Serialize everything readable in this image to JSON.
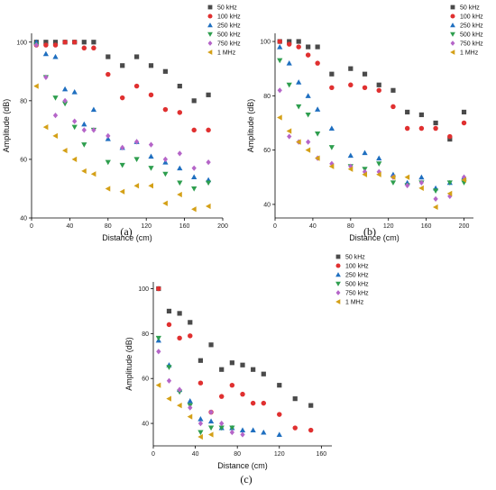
{
  "chart_data": [
    {
      "type": "scatter",
      "panel_label": "(a)",
      "xlabel": "Distance (cm)",
      "ylabel": "Amplitude (dB)",
      "xlim": [
        0,
        200
      ],
      "ylim": [
        40,
        103
      ],
      "xticks": [
        0,
        40,
        80,
        120,
        160,
        200
      ],
      "yticks": [
        40,
        60,
        80,
        100
      ],
      "legend_position": "top-right",
      "series": [
        {
          "name": "50 kHz",
          "marker": "square",
          "color": "#4a4a4a",
          "x": [
            5,
            15,
            25,
            35,
            45,
            55,
            65,
            80,
            95,
            110,
            125,
            140,
            155,
            170,
            185
          ],
          "y": [
            100,
            100,
            100,
            100,
            100,
            100,
            100,
            95,
            92,
            95,
            92,
            90,
            85,
            80,
            82
          ]
        },
        {
          "name": "100 kHz",
          "marker": "circle",
          "color": "#e03030",
          "x": [
            5,
            15,
            25,
            35,
            45,
            55,
            65,
            80,
            95,
            110,
            125,
            140,
            155,
            170,
            185
          ],
          "y": [
            99,
            99,
            99,
            100,
            100,
            98,
            98,
            89,
            81,
            85,
            82,
            77,
            76,
            70,
            70
          ]
        },
        {
          "name": "250 kHz",
          "marker": "triangle-up",
          "color": "#1f6fc0",
          "x": [
            5,
            15,
            25,
            35,
            45,
            55,
            65,
            80,
            95,
            110,
            125,
            140,
            155,
            170,
            185
          ],
          "y": [
            100,
            96,
            95,
            84,
            83,
            72,
            77,
            67,
            64,
            66,
            61,
            59,
            57,
            54,
            53
          ]
        },
        {
          "name": "500 kHz",
          "marker": "triangle-down",
          "color": "#2e9e4e",
          "x": [
            5,
            15,
            25,
            35,
            45,
            55,
            65,
            80,
            95,
            110,
            125,
            140,
            155,
            170,
            185
          ],
          "y": [
            99,
            88,
            81,
            79,
            71,
            65,
            70,
            59,
            58,
            60,
            57,
            55,
            52,
            50,
            52
          ]
        },
        {
          "name": "750 kHz",
          "marker": "diamond",
          "color": "#b565c8",
          "x": [
            5,
            15,
            25,
            35,
            45,
            55,
            65,
            80,
            95,
            110,
            125,
            140,
            155,
            170,
            185
          ],
          "y": [
            99,
            88,
            75,
            80,
            73,
            70,
            70,
            68,
            64,
            66,
            65,
            60,
            62,
            57,
            59
          ]
        },
        {
          "name": "1 MHz",
          "marker": "triangle-left",
          "color": "#d4a017",
          "x": [
            5,
            15,
            25,
            35,
            45,
            55,
            65,
            80,
            95,
            110,
            125,
            140,
            155,
            170,
            185
          ],
          "y": [
            85,
            71,
            68,
            63,
            60,
            56,
            55,
            50,
            49,
            51,
            51,
            45,
            48,
            43,
            44
          ]
        }
      ]
    },
    {
      "type": "scatter",
      "panel_label": "(b)",
      "xlabel": "Distance (cm)",
      "ylabel": "Amplitude (dB)",
      "xlim": [
        0,
        210
      ],
      "ylim": [
        35,
        103
      ],
      "xticks": [
        0,
        40,
        80,
        120,
        160,
        200
      ],
      "yticks": [
        40,
        60,
        80,
        100
      ],
      "legend_position": "top-right",
      "series": [
        {
          "name": "50 kHz",
          "marker": "square",
          "color": "#4a4a4a",
          "x": [
            5,
            15,
            25,
            35,
            45,
            60,
            80,
            95,
            110,
            125,
            140,
            155,
            170,
            185,
            200
          ],
          "y": [
            100,
            100,
            100,
            98,
            98,
            88,
            90,
            88,
            84,
            82,
            74,
            73,
            70,
            64,
            74
          ]
        },
        {
          "name": "100 kHz",
          "marker": "circle",
          "color": "#e03030",
          "x": [
            5,
            15,
            25,
            35,
            45,
            60,
            80,
            95,
            110,
            125,
            140,
            155,
            170,
            185,
            200
          ],
          "y": [
            100,
            99,
            98,
            95,
            92,
            83,
            84,
            83,
            82,
            76,
            68,
            68,
            68,
            65,
            70
          ]
        },
        {
          "name": "250 kHz",
          "marker": "triangle-up",
          "color": "#1f6fc0",
          "x": [
            5,
            15,
            25,
            35,
            45,
            60,
            80,
            95,
            110,
            125,
            140,
            155,
            170,
            185,
            200
          ],
          "y": [
            98,
            92,
            85,
            80,
            75,
            68,
            58,
            59,
            57,
            51,
            48,
            50,
            46,
            48,
            50
          ]
        },
        {
          "name": "500 kHz",
          "marker": "triangle-down",
          "color": "#2e9e4e",
          "x": [
            5,
            15,
            25,
            35,
            45,
            60,
            80,
            95,
            110,
            125,
            140,
            155,
            170,
            185,
            200
          ],
          "y": [
            93,
            84,
            76,
            73,
            66,
            61,
            54,
            53,
            55,
            48,
            47,
            48,
            45,
            48,
            48
          ]
        },
        {
          "name": "750 kHz",
          "marker": "diamond",
          "color": "#b565c8",
          "x": [
            5,
            15,
            25,
            35,
            45,
            60,
            80,
            95,
            110,
            125,
            140,
            155,
            170,
            185,
            200
          ],
          "y": [
            82,
            65,
            63,
            63,
            57,
            55,
            54,
            52,
            52,
            50,
            47,
            48,
            42,
            43,
            50
          ]
        },
        {
          "name": "1 MHz",
          "marker": "triangle-left",
          "color": "#d4a017",
          "x": [
            5,
            15,
            25,
            35,
            45,
            60,
            80,
            95,
            110,
            125,
            140,
            155,
            170,
            185,
            200
          ],
          "y": [
            72,
            67,
            63,
            60,
            57,
            54,
            53,
            51,
            51,
            50,
            50,
            46,
            39,
            44,
            49
          ]
        }
      ]
    },
    {
      "type": "scatter",
      "panel_label": "(c)",
      "xlabel": "Distance (cm)",
      "ylabel": "Amplitude (dB)",
      "xlim": [
        0,
        170
      ],
      "ylim": [
        30,
        103
      ],
      "xticks": [
        0,
        40,
        80,
        120,
        160
      ],
      "yticks": [
        40,
        60,
        80,
        100
      ],
      "legend_position": "top-right",
      "series": [
        {
          "name": "50 kHz",
          "marker": "square",
          "color": "#4a4a4a",
          "x": [
            5,
            15,
            25,
            35,
            45,
            55,
            65,
            75,
            85,
            95,
            105,
            120,
            135,
            150
          ],
          "y": [
            100,
            90,
            89,
            85,
            68,
            75,
            64,
            67,
            66,
            64,
            62,
            57,
            51,
            48
          ]
        },
        {
          "name": "100 kHz",
          "marker": "circle",
          "color": "#e03030",
          "x": [
            5,
            15,
            25,
            35,
            45,
            55,
            65,
            75,
            85,
            95,
            105,
            120,
            135,
            150
          ],
          "y": [
            100,
            84,
            78,
            79,
            58,
            45,
            52,
            57,
            53,
            49,
            49,
            44,
            38,
            37
          ]
        },
        {
          "name": "250 kHz",
          "marker": "triangle-up",
          "color": "#1f6fc0",
          "x": [
            5,
            15,
            25,
            35,
            45,
            55,
            65,
            75,
            85,
            95,
            105,
            120
          ],
          "y": [
            77,
            66,
            55,
            50,
            42,
            41,
            38,
            38,
            37,
            37,
            36,
            35
          ]
        },
        {
          "name": "500 kHz",
          "marker": "triangle-down",
          "color": "#2e9e4e",
          "x": [
            5,
            15,
            25,
            35,
            45,
            55,
            65,
            75
          ],
          "y": [
            78,
            65,
            54,
            48,
            36,
            38,
            38,
            38
          ]
        },
        {
          "name": "750 kHz",
          "marker": "diamond",
          "color": "#b565c8",
          "x": [
            5,
            15,
            25,
            35,
            45,
            55,
            65,
            75,
            85
          ],
          "y": [
            72,
            59,
            55,
            47,
            40,
            45,
            40,
            36,
            35
          ]
        },
        {
          "name": "1 MHz",
          "marker": "triangle-left",
          "color": "#d4a017",
          "x": [
            5,
            15,
            25,
            35,
            45,
            55
          ],
          "y": [
            57,
            51,
            48,
            43,
            34,
            35
          ]
        }
      ]
    }
  ]
}
